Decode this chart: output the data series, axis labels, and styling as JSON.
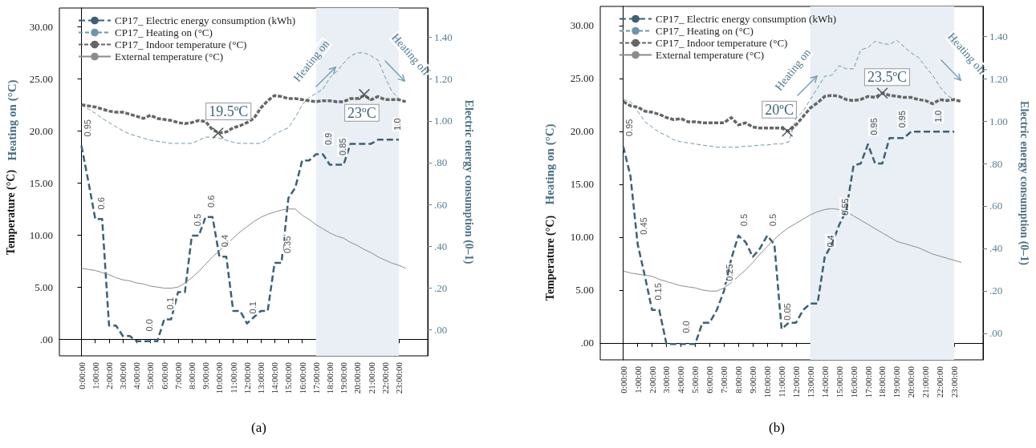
{
  "chart_data": [
    {
      "type": "line",
      "title": "(a)",
      "ylabel": "Temperature (°C)",
      "y2label": "Electric energy consumption (0–1)",
      "legend": "top left",
      "marker": "none",
      "x": [
        0,
        0.5,
        1,
        1.5,
        2,
        2.5,
        3,
        3.5,
        4,
        4.5,
        5,
        5.5,
        6,
        6.5,
        7,
        7.5,
        8,
        8.5,
        9,
        9.5,
        10,
        10.5,
        11,
        11.5,
        12,
        12.5,
        13,
        13.5,
        14,
        14.5,
        15,
        15.5,
        16,
        16.5,
        17,
        17.5,
        18,
        18.5,
        19,
        19.5,
        20,
        20.5,
        21,
        21.5,
        22,
        22.5,
        23,
        23.5
      ],
      "xlim": [
        -1.6,
        25.1
      ],
      "xticks": [
        {
          "value": 0,
          "label": "0:00:00"
        },
        {
          "value": 1,
          "label": "1:00:00"
        },
        {
          "value": 2,
          "label": "2:00:00"
        },
        {
          "value": 3,
          "label": "3:00:00"
        },
        {
          "value": 4,
          "label": "4:00:00"
        },
        {
          "value": 5,
          "label": "5:00:00"
        },
        {
          "value": 6,
          "label": "6:00:00"
        },
        {
          "value": 7,
          "label": "7:00:00"
        },
        {
          "value": 8,
          "label": "8:00:00"
        },
        {
          "value": 9,
          "label": "9:00:00"
        },
        {
          "value": 10,
          "label": "10:00:00"
        },
        {
          "value": 11,
          "label": "11:00:00"
        },
        {
          "value": 12,
          "label": "12:00:00"
        },
        {
          "value": 13,
          "label": "13:00:00"
        },
        {
          "value": 14,
          "label": "14:00:00"
        },
        {
          "value": 15,
          "label": "15:00:00"
        },
        {
          "value": 16,
          "label": "16:00:00"
        },
        {
          "value": 17,
          "label": "17:00:00"
        },
        {
          "value": 18,
          "label": "18:00:00"
        },
        {
          "value": 19,
          "label": "19:00:00"
        },
        {
          "value": 20,
          "label": "20:00:00"
        },
        {
          "value": 21,
          "label": "21:00:00"
        },
        {
          "value": 22,
          "label": "22:00:00"
        },
        {
          "value": 23,
          "label": "23:00:00"
        }
      ],
      "ylim": [
        -1.6,
        31.8
      ],
      "yticks": [
        {
          "value": 0,
          "label": ".00"
        },
        {
          "value": 5,
          "label": "5.00"
        },
        {
          "value": 10,
          "label": "10.00"
        },
        {
          "value": 15,
          "label": "15.00"
        },
        {
          "value": 20,
          "label": "20.00"
        },
        {
          "value": 25,
          "label": "25.00"
        },
        {
          "value": 30,
          "label": "30.00"
        }
      ],
      "y2lim": [
        -0.125,
        1.54
      ],
      "y2ticks": [
        {
          "value": 0,
          "label": ".00"
        },
        {
          "value": 0.2,
          "label": ".20"
        },
        {
          "value": 0.4,
          "label": ".40"
        },
        {
          "value": 0.6,
          "label": ".60"
        },
        {
          "value": 0.8,
          "label": ".80"
        },
        {
          "value": 1,
          "label": "1.00"
        },
        {
          "value": 1.2,
          "label": "1.20"
        },
        {
          "value": 1.4,
          "label": "1.40"
        }
      ],
      "bands": [
        {
          "axis": "x",
          "from": 17,
          "to": 23,
          "color": "#e9eff4"
        }
      ],
      "series": [
        {
          "name": "CP17_ Electric energy consumption (kWh)",
          "type": "line",
          "axis": "y2",
          "color": "#3d6075",
          "line_style": "dashed",
          "values": [
            0.88,
            0.71,
            0.53,
            0.53,
            0.02,
            0.02,
            -0.03,
            -0.03,
            -0.055,
            -0.055,
            -0.055,
            -0.055,
            0.05,
            0.05,
            0.18,
            0.18,
            0.45,
            0.45,
            0.54,
            0.54,
            0.35,
            0.35,
            0.09,
            0.09,
            0.03,
            0.06,
            0.09,
            0.09,
            0.32,
            0.32,
            0.63,
            0.68,
            0.81,
            0.81,
            0.84,
            0.84,
            0.79,
            0.79,
            0.79,
            0.89,
            0.89,
            0.89,
            0.89,
            0.91,
            0.91,
            0.91,
            0.91,
            null
          ]
        },
        {
          "name": "CP17_ Heating on (°C)",
          "type": "line",
          "color": "#6f95ab",
          "line_style": "dashed",
          "values": [
            22.5,
            22.1,
            21.7,
            21.2,
            20.8,
            20.4,
            20.0,
            19.7,
            19.5,
            19.3,
            19.1,
            19.0,
            18.9,
            18.8,
            18.8,
            18.8,
            18.8,
            19.1,
            19.4,
            19.4,
            19.3,
            19.1,
            18.9,
            18.8,
            18.8,
            18.8,
            18.8,
            19.2,
            19.7,
            20.0,
            20.3,
            21.3,
            22.5,
            23.2,
            23.6,
            24.0,
            25.1,
            25.7,
            26.5,
            27.2,
            27.5,
            27.5,
            27.2,
            26.8,
            25.2,
            23.8,
            23.1,
            22.8
          ]
        },
        {
          "name": "CP17_ Indoor temperature (°C)",
          "type": "line",
          "color": "#666666",
          "line_style": "dashed",
          "values": [
            22.5,
            22.4,
            22.3,
            22.1,
            21.9,
            21.8,
            21.8,
            21.6,
            21.4,
            21.2,
            21.5,
            21.2,
            21.1,
            21.0,
            20.8,
            20.7,
            20.8,
            21.0,
            20.9,
            20.1,
            19.8,
            19.9,
            20.3,
            20.5,
            20.8,
            21.2,
            22.2,
            22.9,
            23.4,
            23.3,
            23.1,
            23.1,
            23.0,
            22.9,
            22.8,
            22.9,
            22.9,
            22.8,
            22.8,
            23.1,
            23.1,
            23.4,
            23.0,
            23.3,
            23.0,
            23.0,
            23.0,
            22.8
          ]
        },
        {
          "name": "External temperature (°C)",
          "type": "line",
          "color": "#8c8c8c",
          "line_style": "solid",
          "values": [
            6.8,
            6.7,
            6.6,
            6.4,
            6.2,
            5.9,
            5.7,
            5.6,
            5.4,
            5.3,
            5.1,
            5.0,
            4.9,
            4.9,
            5.0,
            5.4,
            5.9,
            6.5,
            7.2,
            7.9,
            8.5,
            9.1,
            9.7,
            10.3,
            10.8,
            11.3,
            11.7,
            12.0,
            12.2,
            12.4,
            12.5,
            12.5,
            11.9,
            11.5,
            11.0,
            10.6,
            10.2,
            9.9,
            9.7,
            9.3,
            9.0,
            8.6,
            8.3,
            7.9,
            7.6,
            7.3,
            7.1,
            6.8
          ]
        }
      ],
      "annotations": [
        "Heating on (°C)",
        {
          "text": "19.5ºC",
          "x": 9.9,
          "y": 19.8
        },
        {
          "text": "23ºC",
          "x": 20.5,
          "y": 23.5
        },
        "Heating on",
        "Heating off",
        {
          "text": "0.95",
          "x": 0,
          "y": 18.6
        },
        {
          "text": "0.6",
          "x": 1,
          "y": 11.6
        },
        {
          "text": "0.0",
          "x": 4.5,
          "y": -0.1
        },
        {
          "text": "0.1",
          "x": 6,
          "y": 2.0
        },
        {
          "text": "0.5",
          "x": 8,
          "y": 10.0
        },
        {
          "text": "0.6",
          "x": 9,
          "y": 11.8
        },
        {
          "text": "0.4",
          "x": 10,
          "y": 8.0
        },
        {
          "text": "0.1",
          "x": 12,
          "y": 1.6
        },
        {
          "text": "0.35",
          "x": 14.5,
          "y": 7.4
        },
        {
          "text": "0.9",
          "x": 17.5,
          "y": 17.8
        },
        {
          "text": "0.85",
          "x": 18.5,
          "y": 16.8
        },
        {
          "text": "1.0",
          "x": 22.5,
          "y": 19.2
        }
      ]
    },
    {
      "type": "line",
      "title": "(b)",
      "ylabel": "Temperature (°C)",
      "y2label": "Electric energy consumption (0–1)",
      "legend": "top left",
      "marker": "none",
      "x": [
        0,
        0.5,
        1,
        1.5,
        2,
        2.5,
        3,
        3.5,
        4,
        4.5,
        5,
        5.5,
        6,
        6.5,
        7,
        7.5,
        8,
        8.5,
        9,
        9.5,
        10,
        10.5,
        11,
        11.5,
        12,
        12.5,
        13,
        13.5,
        14,
        14.5,
        15,
        15.5,
        16,
        16.5,
        17,
        17.5,
        18,
        18.5,
        19,
        19.5,
        20,
        20.5,
        21,
        21.5,
        22,
        22.5,
        23,
        23.5
      ],
      "xlim": [
        -1.6,
        25.0
      ],
      "xticks": [
        {
          "value": 0,
          "label": "0:00:00"
        },
        {
          "value": 1,
          "label": "1:00:00"
        },
        {
          "value": 2,
          "label": "2:00:00"
        },
        {
          "value": 3,
          "label": "3:00:00"
        },
        {
          "value": 4,
          "label": "4:00:00"
        },
        {
          "value": 5,
          "label": "5:00:00"
        },
        {
          "value": 6,
          "label": "6:00:00"
        },
        {
          "value": 7,
          "label": "7:00:00"
        },
        {
          "value": 8,
          "label": "8:00:00"
        },
        {
          "value": 9,
          "label": "9:00:00"
        },
        {
          "value": 10,
          "label": "10:00:00"
        },
        {
          "value": 11,
          "label": "11:00:00"
        },
        {
          "value": 12,
          "label": "12:00:00"
        },
        {
          "value": 13,
          "label": "13:00:00"
        },
        {
          "value": 14,
          "label": "14:00:00"
        },
        {
          "value": 15,
          "label": "15:00:00"
        },
        {
          "value": 16,
          "label": "16:00:00"
        },
        {
          "value": 17,
          "label": "17:00:00"
        },
        {
          "value": 18,
          "label": "18:00:00"
        },
        {
          "value": 19,
          "label": "19:00:00"
        },
        {
          "value": 20,
          "label": "20:00:00"
        },
        {
          "value": 21,
          "label": "21:00:00"
        },
        {
          "value": 22,
          "label": "22:00:00"
        },
        {
          "value": 23,
          "label": "23:00:00"
        }
      ],
      "ylim": [
        -1.6,
        31.8
      ],
      "yticks": [
        {
          "value": 0,
          "label": ".00"
        },
        {
          "value": 5,
          "label": "5.00"
        },
        {
          "value": 10,
          "label": "10.00"
        },
        {
          "value": 15,
          "label": "15.00"
        },
        {
          "value": 20,
          "label": "20.00"
        },
        {
          "value": 25,
          "label": "25.00"
        },
        {
          "value": 30,
          "label": "30.00"
        }
      ],
      "y2lim": [
        -0.125,
        1.54
      ],
      "y2ticks": [
        {
          "value": 0,
          "label": ".00"
        },
        {
          "value": 0.2,
          "label": ".20"
        },
        {
          "value": 0.4,
          "label": ".40"
        },
        {
          "value": 0.6,
          "label": ".60"
        },
        {
          "value": 0.8,
          "label": ".80"
        },
        {
          "value": 1,
          "label": "1.00"
        },
        {
          "value": 1.2,
          "label": "1.20"
        },
        {
          "value": 1.4,
          "label": "1.40"
        }
      ],
      "bands": [
        {
          "axis": "x",
          "from": 13,
          "to": 23,
          "color": "#e9eff4"
        }
      ],
      "series": [
        {
          "name": "CP17_ Electric energy consumption (kWh)",
          "type": "line",
          "axis": "y2",
          "color": "#3d6075",
          "line_style": "dashed",
          "values": [
            0.88,
            0.74,
            0.42,
            0.27,
            0.11,
            0.11,
            -0.05,
            -0.05,
            -0.05,
            -0.05,
            -0.05,
            0.05,
            0.05,
            0.11,
            0.2,
            0.35,
            0.46,
            0.43,
            0.36,
            0.4,
            0.46,
            0.42,
            0.02,
            0.05,
            0.05,
            0.11,
            0.14,
            0.14,
            0.36,
            0.42,
            0.51,
            0.58,
            0.79,
            0.8,
            0.89,
            0.8,
            0.8,
            0.92,
            0.92,
            0.92,
            0.95,
            0.95,
            0.95,
            0.95,
            0.95,
            0.95,
            0.95,
            null
          ]
        },
        {
          "name": "CP17_ Heating on (°C)",
          "type": "line",
          "color": "#6f95ab",
          "line_style": "dashed",
          "values": [
            23.0,
            22.8,
            21.9,
            20.9,
            20.4,
            19.9,
            19.6,
            19.2,
            19.0,
            18.9,
            18.8,
            18.7,
            18.6,
            18.5,
            18.5,
            18.5,
            18.5,
            18.6,
            18.6,
            18.7,
            18.7,
            18.8,
            18.8,
            19.0,
            21.2,
            21.9,
            23.0,
            24.1,
            25.2,
            25.3,
            26.2,
            25.9,
            25.9,
            27.7,
            27.9,
            28.5,
            28.3,
            28.2,
            28.6,
            28.0,
            27.4,
            27.0,
            26.1,
            25.3,
            24.2,
            23.4,
            23.0,
            null
          ]
        },
        {
          "name": "CP17_ Indoor temperature (°C)",
          "type": "line",
          "color": "#666666",
          "line_style": "dashed",
          "values": [
            22.8,
            22.4,
            22.3,
            21.9,
            21.8,
            21.6,
            21.3,
            21.1,
            21.2,
            20.9,
            20.9,
            20.8,
            20.8,
            20.8,
            20.8,
            21.3,
            20.6,
            20.8,
            20.4,
            20.3,
            20.3,
            20.3,
            20.3,
            20.0,
            20.6,
            21.4,
            22.2,
            22.7,
            23.3,
            23.4,
            23.3,
            23.0,
            22.9,
            23.0,
            23.3,
            23.2,
            23.6,
            23.4,
            23.3,
            23.2,
            23.2,
            23.0,
            22.9,
            22.6,
            23.0,
            22.9,
            23.0,
            22.8
          ]
        },
        {
          "name": "External temperature (°C)",
          "type": "line",
          "color": "#8c8c8c",
          "line_style": "solid",
          "values": [
            6.8,
            6.6,
            6.5,
            6.4,
            6.3,
            6.0,
            5.8,
            5.6,
            5.4,
            5.3,
            5.2,
            5.0,
            4.9,
            4.9,
            5.2,
            5.7,
            6.3,
            6.9,
            7.6,
            8.4,
            9.1,
            9.8,
            10.4,
            10.9,
            11.3,
            11.7,
            12.1,
            12.4,
            12.6,
            12.7,
            12.6,
            12.4,
            12.0,
            11.6,
            11.2,
            10.8,
            10.4,
            10.0,
            9.6,
            9.4,
            9.2,
            9.0,
            8.7,
            8.4,
            8.2,
            8.0,
            7.8,
            7.6
          ]
        }
      ],
      "annotations": [
        "Heating on (°C)",
        {
          "text": "20ºC",
          "x": 11.4,
          "y": 20.0
        },
        {
          "text": "23.5ºC",
          "x": 18.0,
          "y": 23.6
        },
        "Heating on",
        "Heating off",
        {
          "text": "0.95",
          "x": 0,
          "y": 18.7
        },
        {
          "text": "0.45",
          "x": 1,
          "y": 9.4
        },
        {
          "text": "0.15",
          "x": 2,
          "y": 3.2
        },
        {
          "text": "0.0",
          "x": 4,
          "y": 0.1
        },
        {
          "text": "0.25",
          "x": 7,
          "y": 5.0
        },
        {
          "text": "0.5",
          "x": 8,
          "y": 10.2
        },
        {
          "text": "0.5",
          "x": 10,
          "y": 10.2
        },
        {
          "text": "0.05",
          "x": 11,
          "y": 1.3
        },
        {
          "text": "0.4",
          "x": 14,
          "y": 8.2
        },
        {
          "text": "0.55",
          "x": 15,
          "y": 11.2
        },
        {
          "text": "0.95",
          "x": 17,
          "y": 18.8
        },
        {
          "text": "0.95",
          "x": 19,
          "y": 19.5
        },
        {
          "text": "1.0",
          "x": 21.5,
          "y": 20.0
        }
      ]
    }
  ]
}
